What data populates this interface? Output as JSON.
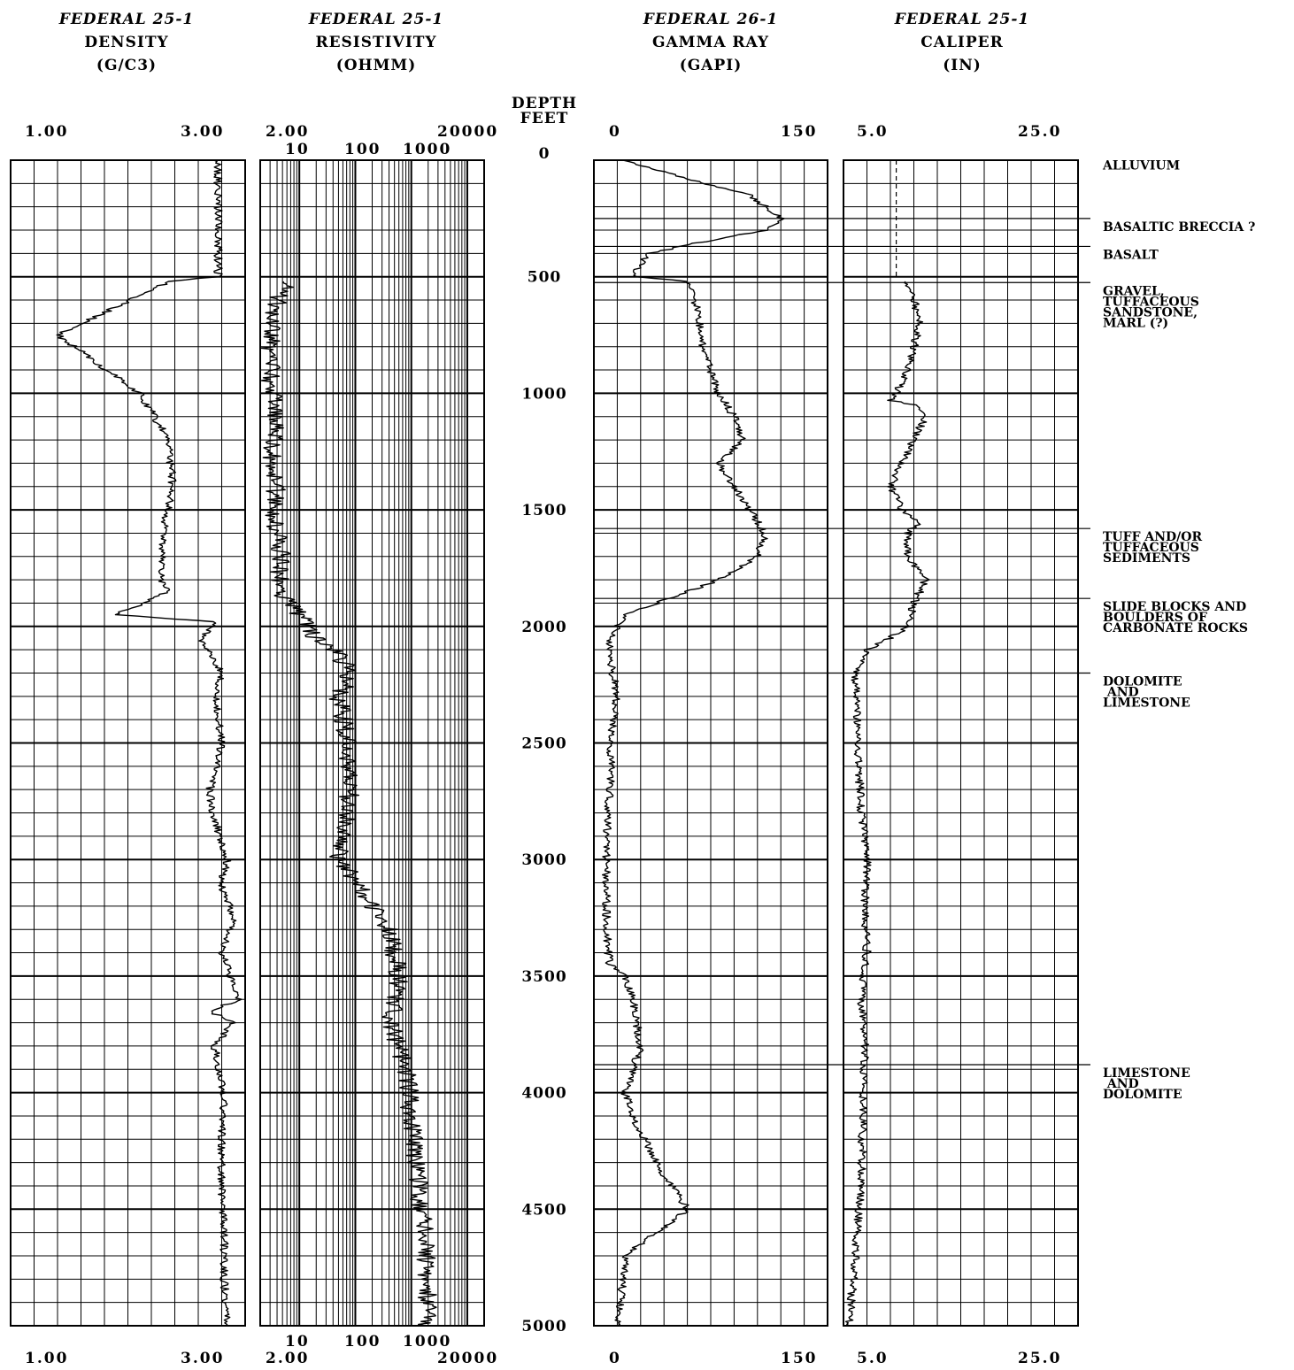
{
  "depth_axis": {
    "title_line1": "DEPTH",
    "title_line2": "FEET",
    "ticks": [
      "0",
      "500",
      "1000",
      "1500",
      "2000",
      "2500",
      "3000",
      "3500",
      "4000",
      "4500",
      "5000"
    ]
  },
  "chart_data": [
    {
      "type": "line",
      "well": "FEDERAL 25-1",
      "title": "DENSITY",
      "unit": "(G/C3)",
      "scale_labels": {
        "left": "1.00",
        "right": "3.00"
      },
      "xlim": [
        1.0,
        3.0
      ],
      "ylim": [
        5000,
        0
      ],
      "ylabel": "DEPTH FEET",
      "grid": true,
      "series": [
        {
          "name": "",
          "x": [
            2.77,
            2.77,
            2.35,
            1.4,
            2.1,
            2.35,
            2.38,
            2.3,
            2.28,
            2.35,
            1.9,
            2.75,
            2.62,
            2.8,
            2.75,
            2.8,
            2.7,
            2.72,
            2.85,
            2.79,
            2.9,
            2.8,
            2.95,
            2.7,
            2.9,
            2.74,
            2.82,
            2.8,
            2.8,
            2.82,
            2.82,
            2.85
          ],
          "y": [
            0,
            500,
            520,
            750,
            1000,
            1200,
            1400,
            1600,
            1800,
            1850,
            1950,
            1980,
            2050,
            2200,
            2300,
            2500,
            2700,
            2800,
            3000,
            3100,
            3250,
            3400,
            3600,
            3650,
            3700,
            3800,
            4000,
            4200,
            4400,
            4600,
            4800,
            5000
          ]
        }
      ]
    },
    {
      "type": "line",
      "well": "FEDERAL 25-1",
      "title": "RESISTIVITY",
      "unit": "(OHMM)",
      "scale_labels": {
        "left": "2.00",
        "right": "20000"
      },
      "decade_labels": [
        "10",
        "100",
        "1000"
      ],
      "xlim": [
        2,
        20000
      ],
      "xscale": "log",
      "ylim": [
        5000,
        0
      ],
      "grid": true,
      "series": [
        {
          "name": "",
          "x": [
            6,
            4,
            3,
            3.2,
            4,
            3,
            4,
            3.5,
            4,
            5,
            4,
            10,
            20,
            40,
            80,
            50,
            70,
            80,
            60,
            50,
            100,
            200,
            400,
            600,
            400,
            800,
            1000,
            1200,
            1500,
            2000,
            1800
          ],
          "y": [
            520,
            600,
            800,
            1000,
            1100,
            1300,
            1450,
            1500,
            1600,
            1700,
            1850,
            1950,
            2050,
            2100,
            2200,
            2300,
            2500,
            2700,
            2900,
            3000,
            3100,
            3200,
            3300,
            3500,
            3700,
            3900,
            4100,
            4300,
            4500,
            4800,
            5000
          ]
        }
      ]
    },
    {
      "type": "line",
      "well": "FEDERAL 26-1",
      "title": "GAMMA RAY",
      "unit": "(GAPI)",
      "scale_labels": {
        "left": "0",
        "right": "150"
      },
      "xlim": [
        0,
        150
      ],
      "ylim": [
        5000,
        0
      ],
      "grid": true,
      "series": [
        {
          "name": "",
          "x": [
            20,
            60,
            100,
            120,
            110,
            70,
            35,
            30,
            25,
            60,
            65,
            70,
            80,
            90,
            95,
            80,
            90,
            100,
            110,
            105,
            80,
            60,
            40,
            20,
            10,
            12,
            15,
            10,
            12,
            10,
            8,
            8,
            10,
            20,
            25,
            30,
            20,
            25,
            40,
            60,
            40,
            20,
            18,
            15
          ],
          "y": [
            0,
            80,
            150,
            250,
            300,
            350,
            400,
            450,
            500,
            520,
            600,
            800,
            1000,
            1100,
            1200,
            1300,
            1400,
            1500,
            1600,
            1700,
            1800,
            1850,
            1900,
            1950,
            2050,
            2200,
            2300,
            2500,
            2600,
            2700,
            3000,
            3300,
            3450,
            3500,
            3600,
            3800,
            4000,
            4100,
            4300,
            4500,
            4600,
            4700,
            4850,
            5000
          ]
        }
      ]
    },
    {
      "type": "line",
      "well": "FEDERAL 25-1",
      "title": "CALIPER",
      "unit": "(IN)",
      "scale_labels": {
        "left": "5.0",
        "right": "25.0"
      },
      "xlim": [
        5.0,
        25.0
      ],
      "ylim": [
        5000,
        0
      ],
      "grid": true,
      "series": [
        {
          "name": "",
          "x": [
            10.5,
            11.0,
            11.5,
            11.0,
            10.5,
            9.5,
            9.0,
            11.0,
            12.0,
            11.0,
            10.0,
            9.0,
            10.0,
            11.5,
            10.5,
            10.5,
            12.0,
            11.0,
            10.5,
            9.0,
            7.0,
            6.0,
            6.2,
            6.5,
            7.0,
            6.8,
            7.0,
            6.5,
            6.8,
            6.7,
            6.6,
            6.5,
            6.0,
            5.5
          ],
          "y": [
            520,
            600,
            700,
            800,
            900,
            1000,
            1030,
            1050,
            1100,
            1200,
            1300,
            1400,
            1500,
            1550,
            1600,
            1700,
            1800,
            1900,
            2000,
            2050,
            2100,
            2200,
            2500,
            2800,
            3000,
            3200,
            3400,
            3600,
            3800,
            4000,
            4200,
            4400,
            4700,
            5000
          ]
        },
        {
          "name": "",
          "x": [
            9.5,
            9.5
          ],
          "y": [
            0,
            500
          ]
        }
      ]
    }
  ],
  "lithology": [
    {
      "label": "ALLUVIUM",
      "top": 0
    },
    {
      "label": "BASALTIC BRECCIA ?",
      "top": 250
    },
    {
      "label": "BASALT",
      "top": 370
    },
    {
      "label": "GRAVEL, TUFFACEOUS SANDSTONE, MARL (?)",
      "top": 525
    },
    {
      "label": "TUFF AND/OR TUFFACEOUS SEDIMENTS",
      "top": 1580
    },
    {
      "label": "SLIDE BLOCKS AND BOULDERS OF CARBONATE ROCKS",
      "top": 1880
    },
    {
      "label": "DOLOMITE AND LIMESTONE",
      "top": 2200
    },
    {
      "label": "LIMESTONE AND DOLOMITE",
      "top": 3880
    }
  ]
}
